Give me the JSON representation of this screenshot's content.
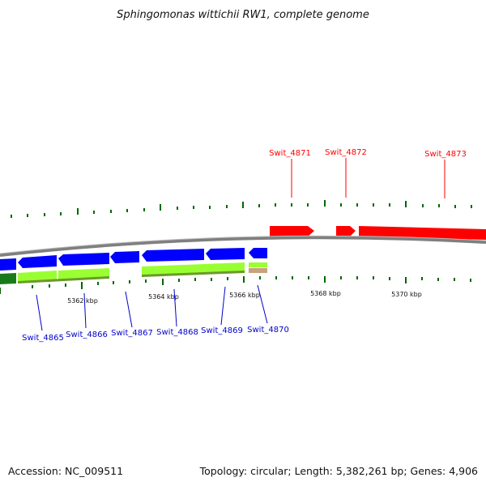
{
  "title": "Sphingomonas wittichii RW1, complete genome",
  "footer": {
    "accession": "Accession: NC_009511",
    "summary": "Topology: circular; Length: 5,382,261 bp; Genes: 4,906"
  },
  "colors": {
    "forward_cds": "#ff0000",
    "reverse_cds": "#0000ff",
    "reverse_gene": "#99ff33",
    "other_feature": "#c8a27a",
    "backbone": "#808080",
    "tick": "#006600"
  },
  "scale_labels": [
    "5362 kbp",
    "5364 kbp",
    "5366 kbp",
    "5368 kbp",
    "5370 kbp"
  ],
  "forward_labels": [
    "Swit_4871",
    "Swit_4872",
    "Swit_4873"
  ],
  "reverse_labels": [
    "Swit_4865",
    "Swit_4866",
    "Swit_4867",
    "Swit_4868",
    "Swit_4869",
    "Swit_4870"
  ]
}
